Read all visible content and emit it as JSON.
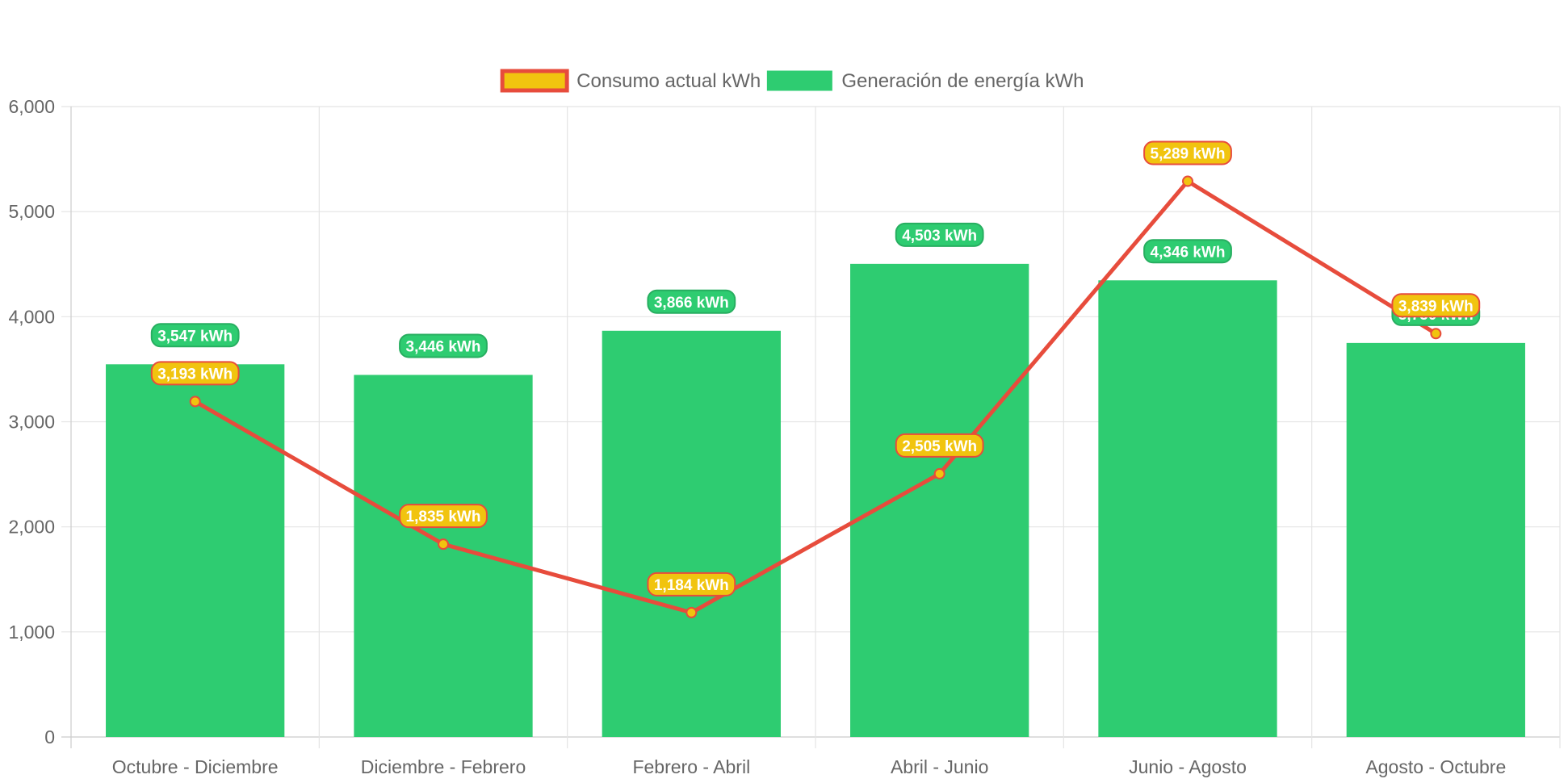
{
  "chart_data": {
    "type": "bar",
    "categories": [
      "Octubre - Diciembre",
      "Diciembre - Febrero",
      "Febrero - Abril",
      "Abril - Junio",
      "Junio - Agosto",
      "Agosto - Octubre"
    ],
    "series": [
      {
        "name": "Consumo actual kWh",
        "type": "line",
        "values": [
          3193,
          1835,
          1184,
          2505,
          5289,
          3839
        ],
        "labels": [
          "3,193 kWh",
          "1,835 kWh",
          "1,184 kWh",
          "2,505 kWh",
          "5,289 kWh",
          "3,839 kWh"
        ],
        "color": "#e74c3c",
        "fill_color": "#f1c40f"
      },
      {
        "name": "Generación de energía kWh",
        "type": "bar",
        "values": [
          3547,
          3446,
          3866,
          4503,
          4346,
          3750
        ],
        "labels": [
          "3,547 kWh",
          "3,446 kWh",
          "3,866 kWh",
          "4,503 kWh",
          "4,346 kWh",
          "3,750 kWh"
        ],
        "color": "#2ecc71",
        "label_border_color": "#27ae60"
      }
    ],
    "ylim": [
      0,
      6000
    ],
    "yticks": [
      "0",
      "1,000",
      "2,000",
      "3,000",
      "4,000",
      "5,000",
      "6,000"
    ],
    "grid": true,
    "legend_position": "top"
  }
}
